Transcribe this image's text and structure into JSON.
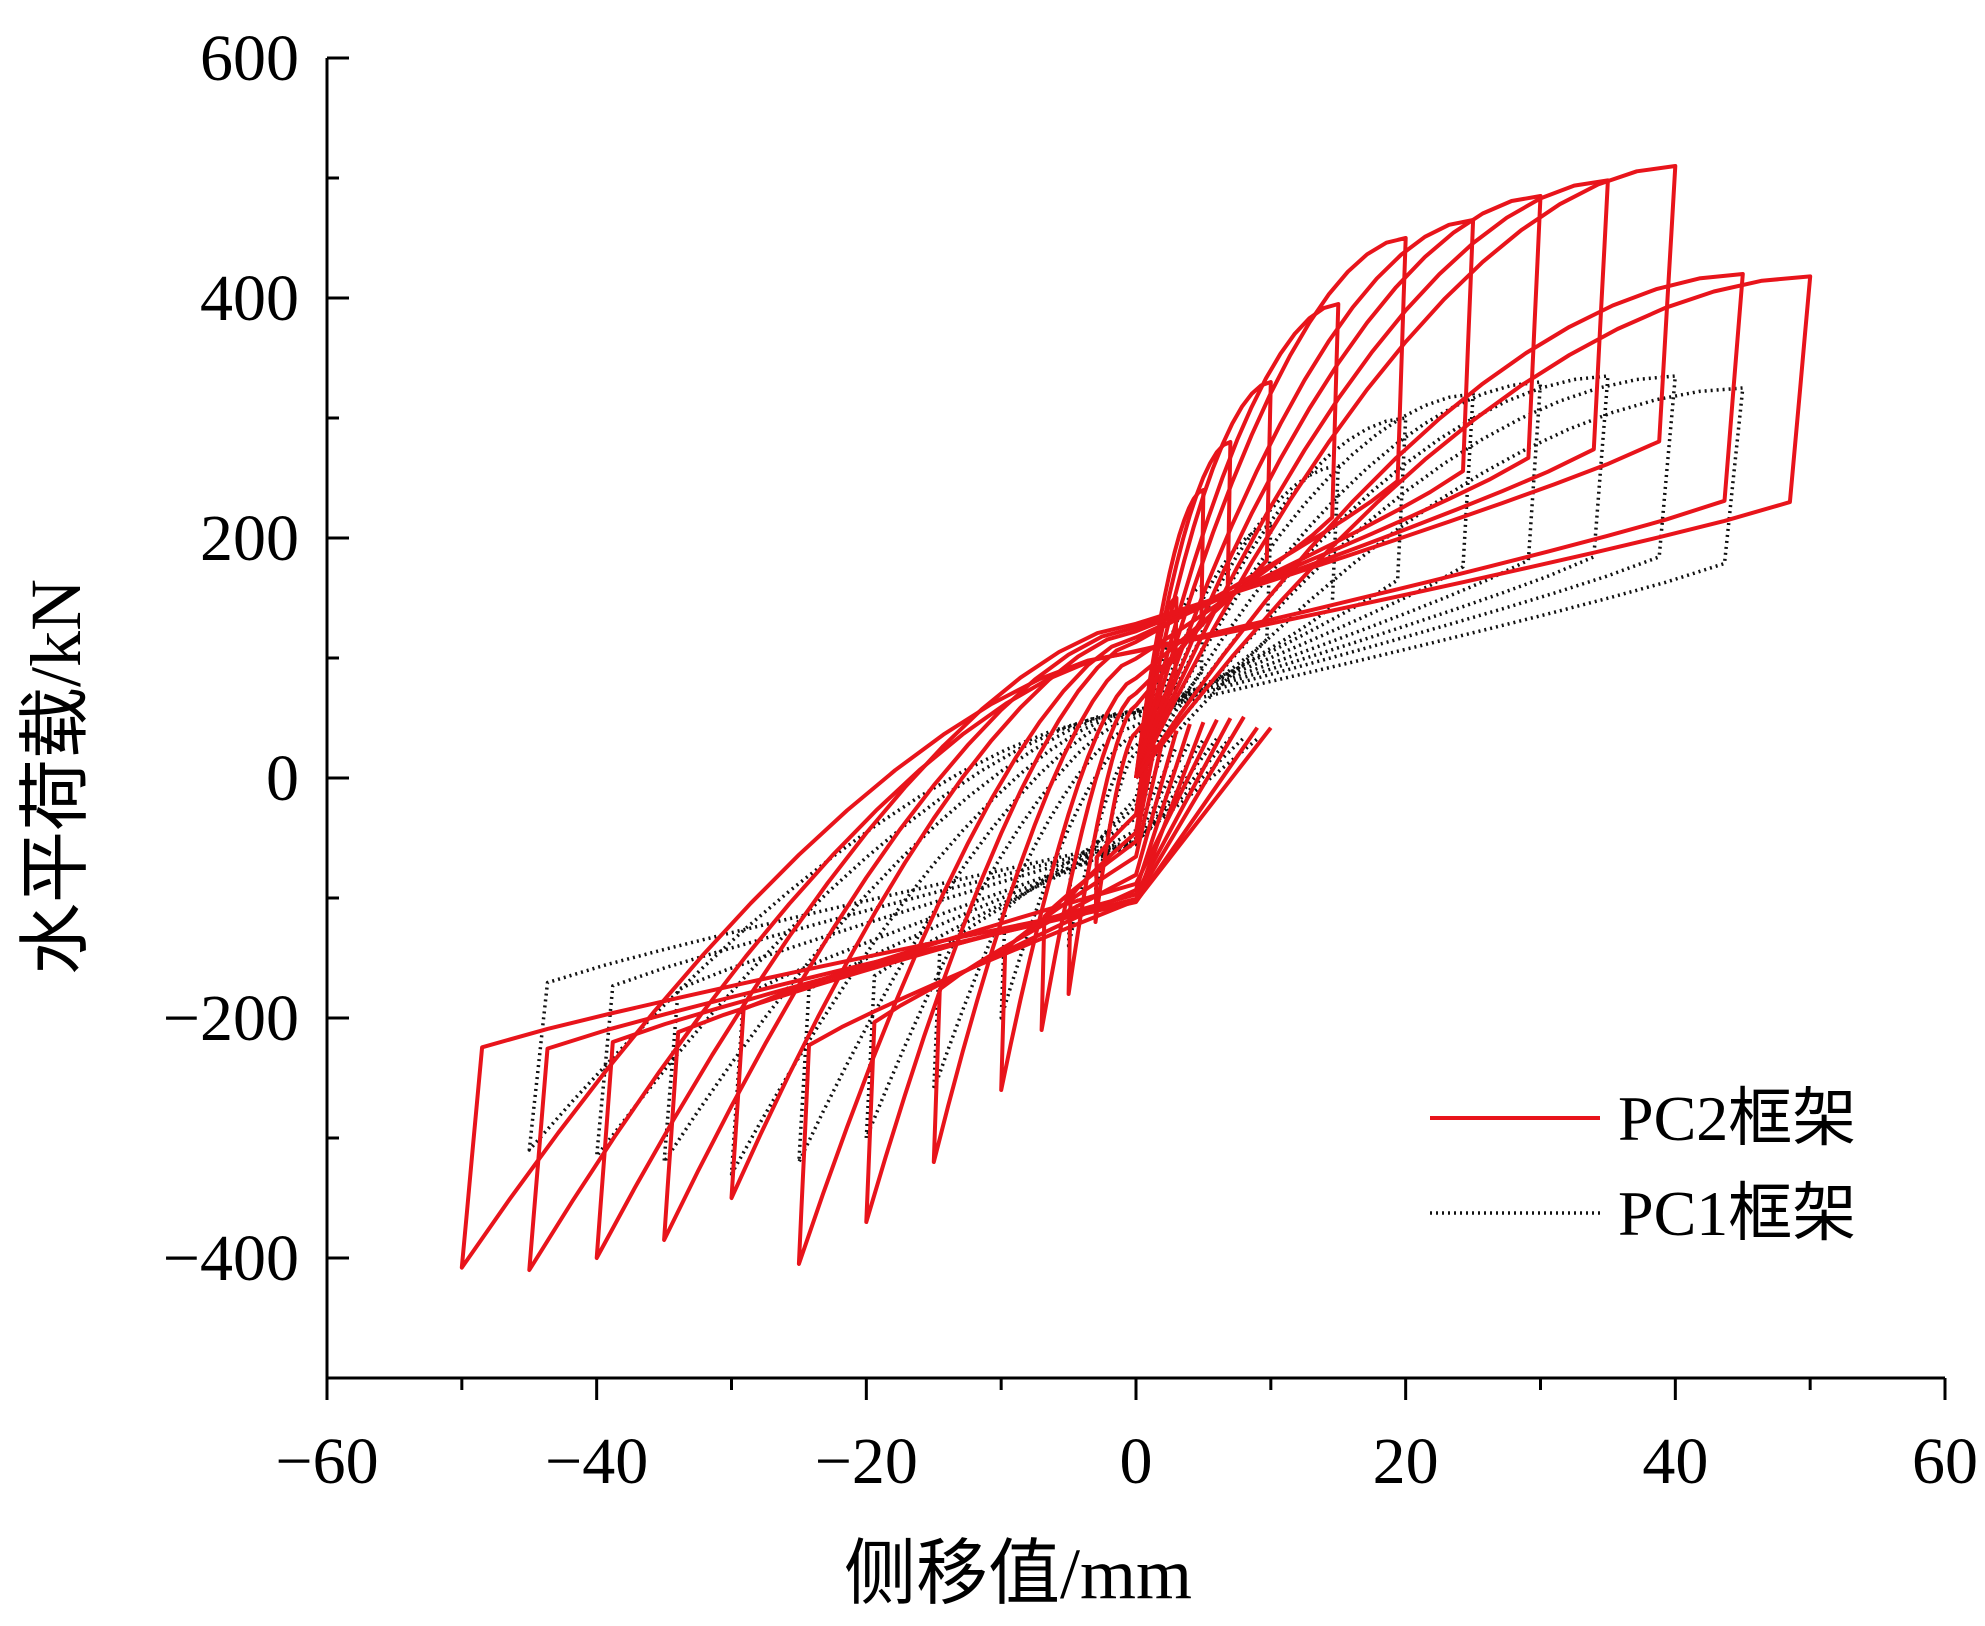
{
  "chart_data": {
    "type": "line",
    "title": "",
    "xlabel": "侧移值/mm",
    "ylabel": "水平荷载/kN",
    "xlim": [
      -60,
      60
    ],
    "ylim": [
      -500,
      600
    ],
    "x_ticks": [
      -60,
      -40,
      -20,
      0,
      20,
      40,
      60
    ],
    "x_tick_labels": [
      "−60",
      "−40",
      "−20",
      "0",
      "20",
      "40",
      "60"
    ],
    "y_ticks": [
      -400,
      -200,
      0,
      200,
      400,
      600
    ],
    "y_tick_labels": [
      "−400",
      "−200",
      "0",
      "200",
      "400",
      "600"
    ],
    "grid": false,
    "legend_position": "bottom-right",
    "series": [
      {
        "name": "PC2框架",
        "color": "#e8141b",
        "style": "solid",
        "cycles": [
          {
            "dmax": 3,
            "pmax": 150,
            "dmin": -3,
            "pmin": -120
          },
          {
            "dmax": 5,
            "pmax": 240,
            "dmin": -5,
            "pmin": -180
          },
          {
            "dmax": 7,
            "pmax": 280,
            "dmin": -7,
            "pmin": -210
          },
          {
            "dmax": 10,
            "pmax": 330,
            "dmin": -10,
            "pmin": -260
          },
          {
            "dmax": 15,
            "pmax": 395,
            "dmin": -15,
            "pmin": -320
          },
          {
            "dmax": 20,
            "pmax": 450,
            "dmin": -20,
            "pmin": -370
          },
          {
            "dmax": 25,
            "pmax": 465,
            "dmin": -25,
            "pmin": -405
          },
          {
            "dmax": 30,
            "pmax": 485,
            "dmin": -30,
            "pmin": -350
          },
          {
            "dmax": 35,
            "pmax": 498,
            "dmin": -35,
            "pmin": -385
          },
          {
            "dmax": 40,
            "pmax": 510,
            "dmin": -40,
            "pmin": -400
          },
          {
            "dmax": 45,
            "pmax": 420,
            "dmin": -45,
            "pmin": -410
          },
          {
            "dmax": 50,
            "pmax": 418,
            "dmin": -50,
            "pmin": -408
          }
        ]
      },
      {
        "name": "PC1框架",
        "color": "#111111",
        "style": "dotted",
        "cycles": [
          {
            "dmax": 3,
            "pmax": 120,
            "dmin": -3,
            "pmin": -100
          },
          {
            "dmax": 5,
            "pmax": 160,
            "dmin": -5,
            "pmin": -140
          },
          {
            "dmax": 10,
            "pmax": 210,
            "dmin": -10,
            "pmin": -200
          },
          {
            "dmax": 15,
            "pmax": 260,
            "dmin": -15,
            "pmin": -260
          },
          {
            "dmax": 20,
            "pmax": 300,
            "dmin": -20,
            "pmin": -300
          },
          {
            "dmax": 25,
            "pmax": 320,
            "dmin": -25,
            "pmin": -320
          },
          {
            "dmax": 30,
            "pmax": 330,
            "dmin": -30,
            "pmin": -330
          },
          {
            "dmax": 35,
            "pmax": 335,
            "dmin": -35,
            "pmin": -320
          },
          {
            "dmax": 40,
            "pmax": 335,
            "dmin": -40,
            "pmin": -315
          },
          {
            "dmax": 45,
            "pmax": 325,
            "dmin": -45,
            "pmin": -310
          }
        ]
      }
    ]
  }
}
